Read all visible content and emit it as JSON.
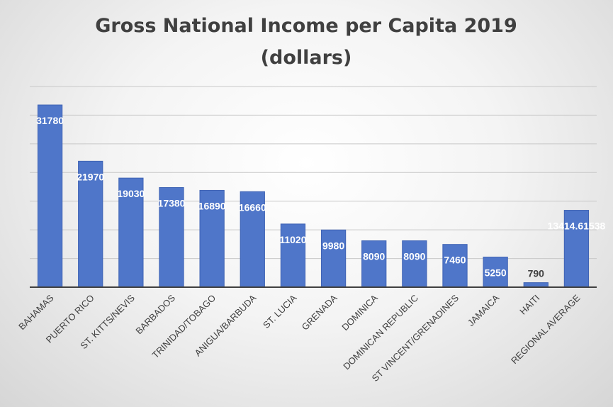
{
  "chart_data": {
    "type": "bar",
    "title": [
      "Gross National Income per Capita 2019",
      "(dollars)"
    ],
    "categories": [
      "BAHAMAS",
      "PUERTO RICO",
      "ST. KITTS/NEVIS",
      "BARBADOS",
      "TRINIDAD/TOBAGO",
      "ANIGUA/BARBUDA",
      "ST. LUCIA",
      "GRENADA",
      "DOMINICA",
      "DOMINICAN REPUBLIC",
      "ST VINCENT/GRENADINES",
      "JAMAICA",
      "HAITI",
      "REGIONAL AVERAGE"
    ],
    "values": [
      31780,
      21970,
      19030,
      17380,
      16890,
      16660,
      11020,
      9980,
      8090,
      8090,
      7460,
      5250,
      790,
      13414.61538
    ],
    "data_labels": [
      "31780",
      "21970",
      "19030",
      "17380",
      "16890",
      "16660",
      "11020",
      "9980",
      "8090",
      "8090",
      "7460",
      "5250",
      "790",
      "13414.61538"
    ],
    "ylim": [
      0,
      35000
    ],
    "y_tick_step": 5000,
    "y_tick_labels_shown": false,
    "grid": true,
    "bar_color": "#4f76c9",
    "label_color": "#ffffff",
    "text_color": "#404040"
  }
}
